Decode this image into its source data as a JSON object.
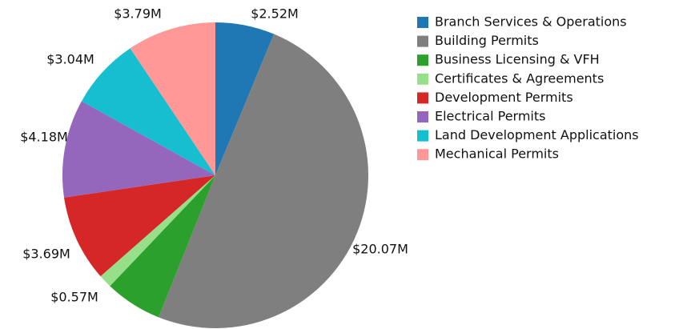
{
  "chart_data": {
    "type": "pie",
    "categories": [
      "Branch Services & Operations",
      "Building Permits",
      "Business Licensing & VFH",
      "Certificates & Agreements",
      "Development Permits",
      "Electrical Permits",
      "Land Development Applications",
      "Mechanical Permits"
    ],
    "values": [
      2.52,
      20.07,
      2.44,
      0.57,
      3.69,
      4.18,
      3.04,
      3.79
    ],
    "value_labels": [
      "$2.52M",
      "$20.07M",
      null,
      "$0.57M",
      "$3.69M",
      "$4.18M",
      "$3.04M",
      "$3.79M"
    ],
    "colors": [
      "#1f77b4",
      "#7f7f7f",
      "#2ca02c",
      "#98df8a",
      "#d62728",
      "#9467bd",
      "#17becf",
      "#ff9896"
    ],
    "legend": "right"
  }
}
